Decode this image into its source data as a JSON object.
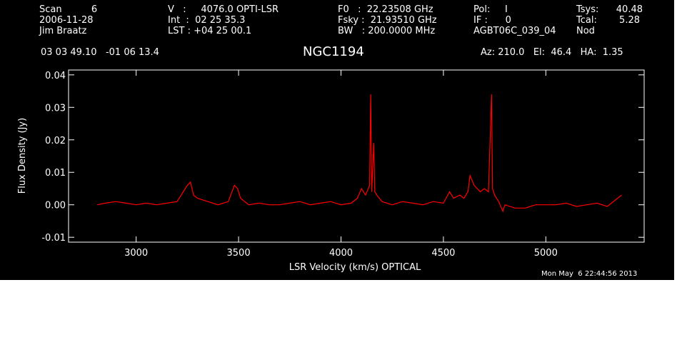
{
  "header": {
    "col1": [
      "Scan          6",
      "2006-11-28",
      "Jim Braatz"
    ],
    "col2": [
      "V   :     4076.0 OPTI-LSR",
      "Int  :  02 25 35.3",
      "LST : +04 25 00.1"
    ],
    "col3": [
      "F0   :  22.23508 GHz",
      "Fsky :  21.93510 GHz",
      "BW   : 200.0000 MHz"
    ],
    "col4": [
      "Pol:     I",
      "IF :      0",
      "AGBT06C_039_04"
    ],
    "col5": [
      "Tsys:",
      "Tcal:",
      "Nod"
    ],
    "col5_values": [
      "40.48",
      "5.28",
      ""
    ],
    "coords": "03 03 49.10   -01 06 13.4",
    "source": "NGC1194",
    "azelha": "Az: 210.0   El:  46.4   HA:  1.35",
    "timestamp": "Mon May  6 22:44:56 2013"
  },
  "colors": {
    "background": "#000000",
    "axes": "#ffffff",
    "trace": "#ff0000",
    "outside": "#ffffff"
  },
  "chart_data": {
    "type": "line",
    "title": "NGC1194",
    "xlabel": "LSR Velocity (km/s) OPTICAL",
    "ylabel": "Flux Density (Jy)",
    "xlim": [
      2670,
      5480
    ],
    "ylim": [
      -0.0115,
      0.0415
    ],
    "x_ticks": [
      3000,
      3500,
      4000,
      4500,
      5000
    ],
    "y_ticks": [
      -0.01,
      0.0,
      0.01,
      0.02,
      0.03,
      0.04
    ],
    "y_tick_labels": [
      "-0.01",
      "0.00",
      "0.01",
      "0.02",
      "0.03",
      "0.04"
    ],
    "grid": false,
    "series": [
      {
        "x": [
          2810,
          2850,
          2900,
          2950,
          3000,
          3050,
          3100,
          3150,
          3200,
          3230,
          3250,
          3265,
          3280,
          3300,
          3350,
          3400,
          3450,
          3480,
          3495,
          3510,
          3550,
          3600,
          3650,
          3700,
          3750,
          3800,
          3850,
          3900,
          3950,
          4000,
          4050,
          4080,
          4100,
          4120,
          4140,
          4145,
          4150,
          4160,
          4165,
          4175,
          4200,
          4250,
          4300,
          4350,
          4400,
          4450,
          4500,
          4530,
          4550,
          4580,
          4600,
          4620,
          4630,
          4650,
          4680,
          4700,
          4720,
          4735,
          4740,
          4750,
          4770,
          4790,
          4800,
          4850,
          4900,
          4950,
          5000,
          5050,
          5100,
          5150,
          5200,
          5250,
          5300,
          5350,
          5370
        ],
        "y": [
          0.0,
          0.0005,
          0.001,
          0.0005,
          0.0,
          0.0005,
          0.0,
          0.0005,
          0.001,
          0.004,
          0.006,
          0.007,
          0.003,
          0.002,
          0.001,
          0.0,
          0.001,
          0.006,
          0.005,
          0.002,
          0.0,
          0.0005,
          0.0,
          0.0,
          0.0005,
          0.001,
          0.0,
          0.0005,
          0.001,
          0.0,
          0.0005,
          0.002,
          0.005,
          0.003,
          0.006,
          0.034,
          0.004,
          0.019,
          0.004,
          0.003,
          0.001,
          0.0,
          0.001,
          0.0005,
          0.0,
          0.001,
          0.0005,
          0.004,
          0.002,
          0.003,
          0.002,
          0.004,
          0.009,
          0.006,
          0.004,
          0.005,
          0.004,
          0.034,
          0.005,
          0.003,
          0.001,
          -0.002,
          0.0,
          -0.001,
          -0.001,
          0.0,
          0.0,
          0.0,
          0.0005,
          -0.0005,
          0.0,
          0.0005,
          -0.0005,
          0.002,
          0.003
        ]
      }
    ]
  }
}
